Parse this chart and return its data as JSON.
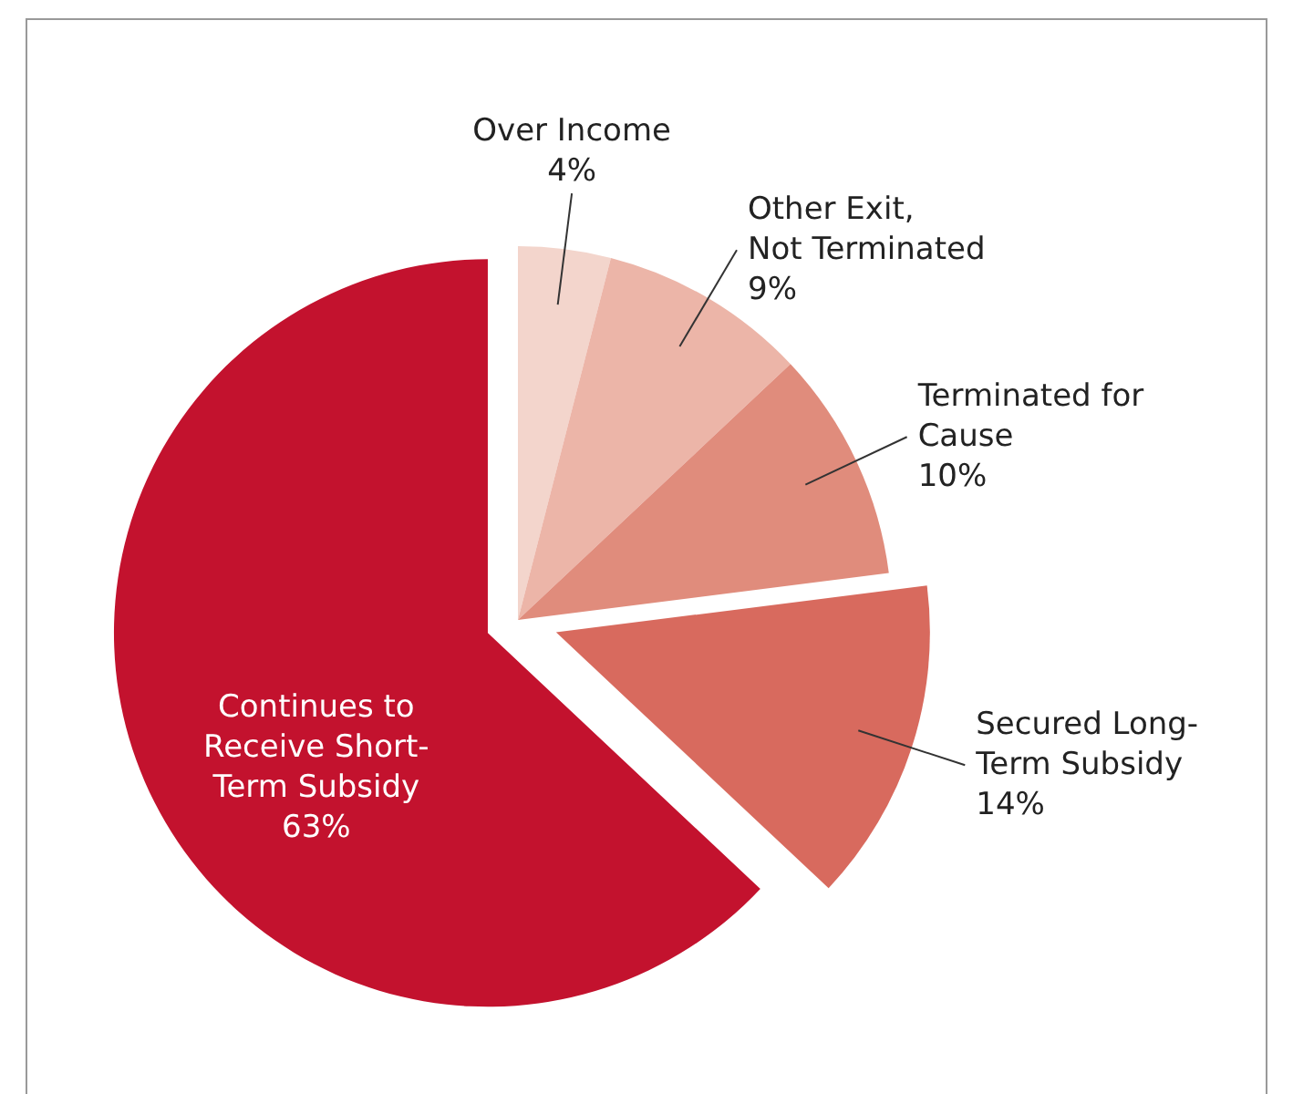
{
  "chart_data": {
    "type": "pie",
    "categories": [
      "Over Income",
      "Other Exit, Not Terminated",
      "Terminated for Cause",
      "Secured Long-Term Subsidy",
      "Continues to Receive Short-Term Subsidy"
    ],
    "values": [
      4,
      9,
      10,
      14,
      63
    ],
    "colors": [
      "#f3d5cc",
      "#ecb5a8",
      "#e08c7c",
      "#d86a5e",
      "#c3122e"
    ],
    "value_labels": [
      "4%",
      "9%",
      "10%",
      "14%",
      "63%"
    ]
  }
}
